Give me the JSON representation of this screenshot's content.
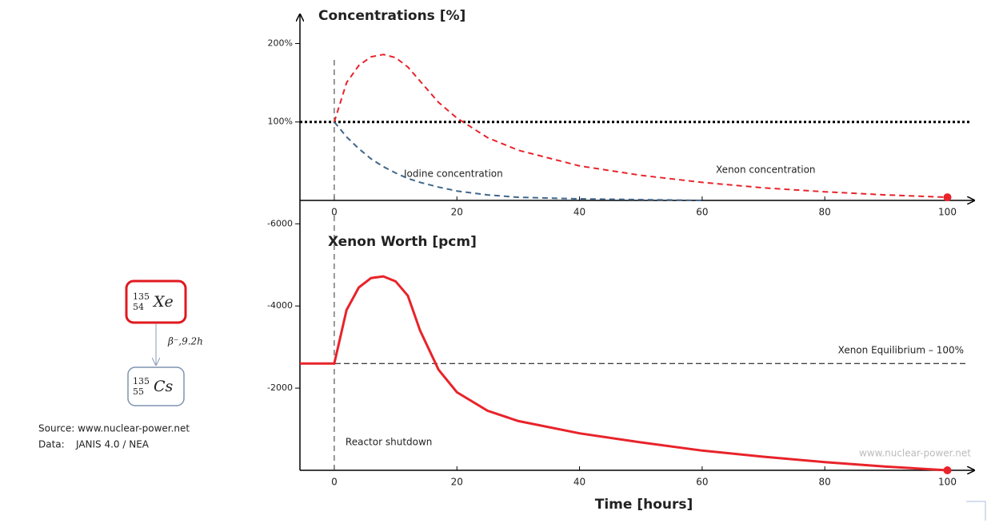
{
  "chart_data": [
    {
      "type": "line",
      "title": "Concentrations [%]",
      "xlim": [
        -5.6,
        104.5
      ],
      "xticks": [
        0,
        20,
        40,
        60,
        80,
        100
      ],
      "ylim": [
        0,
        230
      ],
      "yticks": [
        {
          "value": 100,
          "label": "100%"
        },
        {
          "value": 200,
          "label": "200%"
        }
      ],
      "hline": {
        "value": 100,
        "style": "dotted"
      },
      "vline": {
        "value": 0
      },
      "series": [
        {
          "name": "Xenon concentration",
          "color": "#e8232a",
          "dash": "dashed",
          "end_marker": true,
          "x": [
            0,
            2,
            4,
            6,
            8,
            10,
            12,
            14,
            17,
            20,
            25,
            30,
            40,
            50,
            60,
            70,
            80,
            90,
            100
          ],
          "values": [
            100,
            150,
            172,
            183,
            186,
            182,
            170,
            152,
            125,
            105,
            80,
            64,
            44,
            32,
            23,
            16,
            11,
            7,
            4
          ]
        },
        {
          "name": "Iodine concentration",
          "color": "#41668c",
          "dash": "dashed",
          "end_marker": false,
          "x": [
            0,
            2,
            4,
            6,
            8,
            10,
            12,
            14,
            17,
            20,
            25,
            30,
            40,
            50,
            60
          ],
          "values": [
            100,
            81,
            66,
            53,
            43,
            35,
            28,
            23,
            17,
            12,
            7,
            4,
            2,
            1,
            0
          ]
        }
      ]
    },
    {
      "type": "line",
      "title": "Xenon Worth [pcm]",
      "x_label": "Time [hours]",
      "xlim": [
        -5.6,
        104.5
      ],
      "xticks": [
        0,
        20,
        40,
        60,
        80,
        100
      ],
      "ylim": [
        0,
        -6200
      ],
      "yticks": [
        -6000,
        -4000,
        -2000
      ],
      "hline": {
        "value": -2600,
        "style": "dashed",
        "label": "Xenon Equilibrium – 100%"
      },
      "vline": {
        "value": 0,
        "label": "Reactor shutdown"
      },
      "series": [
        {
          "name": "Xenon worth",
          "color": "#e8232a",
          "dash": "solid",
          "end_marker": true,
          "x": [
            -5.6,
            0,
            2,
            4,
            6,
            8,
            10,
            12,
            14,
            17,
            20,
            25,
            30,
            40,
            50,
            60,
            70,
            80,
            90,
            100
          ],
          "values": [
            -2600,
            -2600,
            -3900,
            -4450,
            -4680,
            -4720,
            -4600,
            -4250,
            -3400,
            -2450,
            -1900,
            -1450,
            -1200,
            -900,
            -680,
            -480,
            -330,
            -200,
            -90,
            0
          ]
        }
      ]
    }
  ],
  "diagram": {
    "parent": {
      "mass": "135",
      "atomic": "54",
      "symbol": "Xe"
    },
    "decay": "β⁻,9.2h",
    "daughter": {
      "mass": "135",
      "atomic": "55",
      "symbol": "Cs"
    }
  },
  "source": {
    "line1": "Source: www.nuclear-power.net",
    "data_key": "Data:",
    "data_value": "JANIS 4.0 / NEA"
  },
  "watermark": "www.nuclear-power.net"
}
